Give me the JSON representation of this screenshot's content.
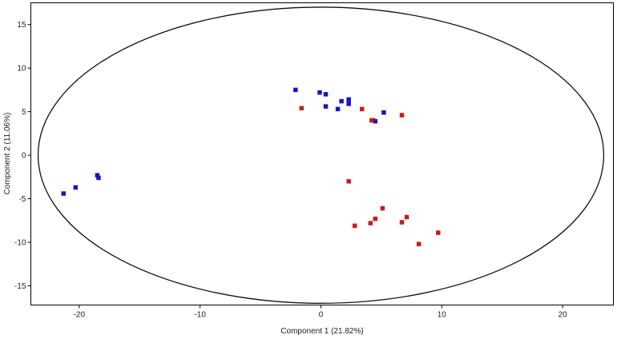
{
  "chart_data": {
    "type": "scatter",
    "xlabel": "Component 1 (21.82%)",
    "ylabel": "Component 2 (11.06%)",
    "xlim": [
      -24,
      24.2
    ],
    "ylim": [
      -17.2,
      17.5
    ],
    "xticks": [
      -20,
      -10,
      0,
      10,
      20
    ],
    "yticks": [
      15,
      10,
      5,
      0,
      -5,
      -10,
      -15
    ],
    "grid": false,
    "ellipse": {
      "cx": 0,
      "cy": 0,
      "rx": 23.4,
      "ry": 17
    },
    "series": [
      {
        "color": "#1515c8",
        "marker": "square",
        "points": [
          [
            -2.1,
            7.5
          ],
          [
            -0.1,
            7.2
          ],
          [
            0.4,
            7.0
          ],
          [
            1.7,
            6.2
          ],
          [
            2.3,
            6.4
          ],
          [
            2.3,
            5.9
          ],
          [
            0.4,
            5.6
          ],
          [
            1.4,
            5.3
          ],
          [
            4.3,
            4.0
          ],
          [
            4.5,
            3.9
          ],
          [
            5.2,
            4.9
          ],
          [
            -18.5,
            -2.3
          ],
          [
            -18.4,
            -2.6
          ],
          [
            -20.3,
            -3.7
          ],
          [
            -21.3,
            -4.4
          ]
        ]
      },
      {
        "color": "#cc1a1a",
        "marker": "square",
        "points": [
          [
            -1.6,
            5.4
          ],
          [
            3.4,
            5.3
          ],
          [
            4.2,
            4.0
          ],
          [
            6.7,
            4.6
          ],
          [
            2.3,
            -3.0
          ],
          [
            5.1,
            -6.1
          ],
          [
            4.5,
            -7.3
          ],
          [
            4.1,
            -7.8
          ],
          [
            2.8,
            -8.1
          ],
          [
            7.1,
            -7.1
          ],
          [
            6.7,
            -7.7
          ],
          [
            9.7,
            -8.9
          ],
          [
            8.1,
            -10.2
          ]
        ]
      }
    ]
  }
}
